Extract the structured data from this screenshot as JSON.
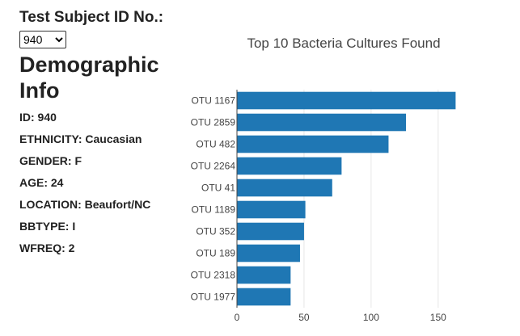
{
  "selector": {
    "label": "Test Subject ID No.:",
    "selected": "940",
    "options": [
      "940"
    ]
  },
  "demographics": {
    "title": "Demographic Info",
    "items": [
      "ID: 940",
      "ETHNICITY: Caucasian",
      "GENDER: F",
      "AGE: 24",
      "LOCATION: Beaufort/NC",
      "BBTYPE: I",
      "WFREQ: 2"
    ]
  },
  "colors": {
    "bar": "#1f77b4",
    "grid": "#e6e6e6",
    "tick": "#444444"
  },
  "chart_data": {
    "type": "bar",
    "orientation": "horizontal",
    "title": "Top 10 Bacteria Cultures Found",
    "categories": [
      "OTU 1167",
      "OTU 2859",
      "OTU 482",
      "OTU 2264",
      "OTU 41",
      "OTU 1189",
      "OTU 352",
      "OTU 189",
      "OTU 2318",
      "OTU 1977"
    ],
    "values": [
      163,
      126,
      113,
      78,
      71,
      51,
      50,
      47,
      40,
      40
    ],
    "xlim": [
      0,
      170
    ],
    "xticks": [
      0,
      50,
      100,
      150
    ],
    "grid": true,
    "xlabel": "",
    "ylabel": ""
  }
}
